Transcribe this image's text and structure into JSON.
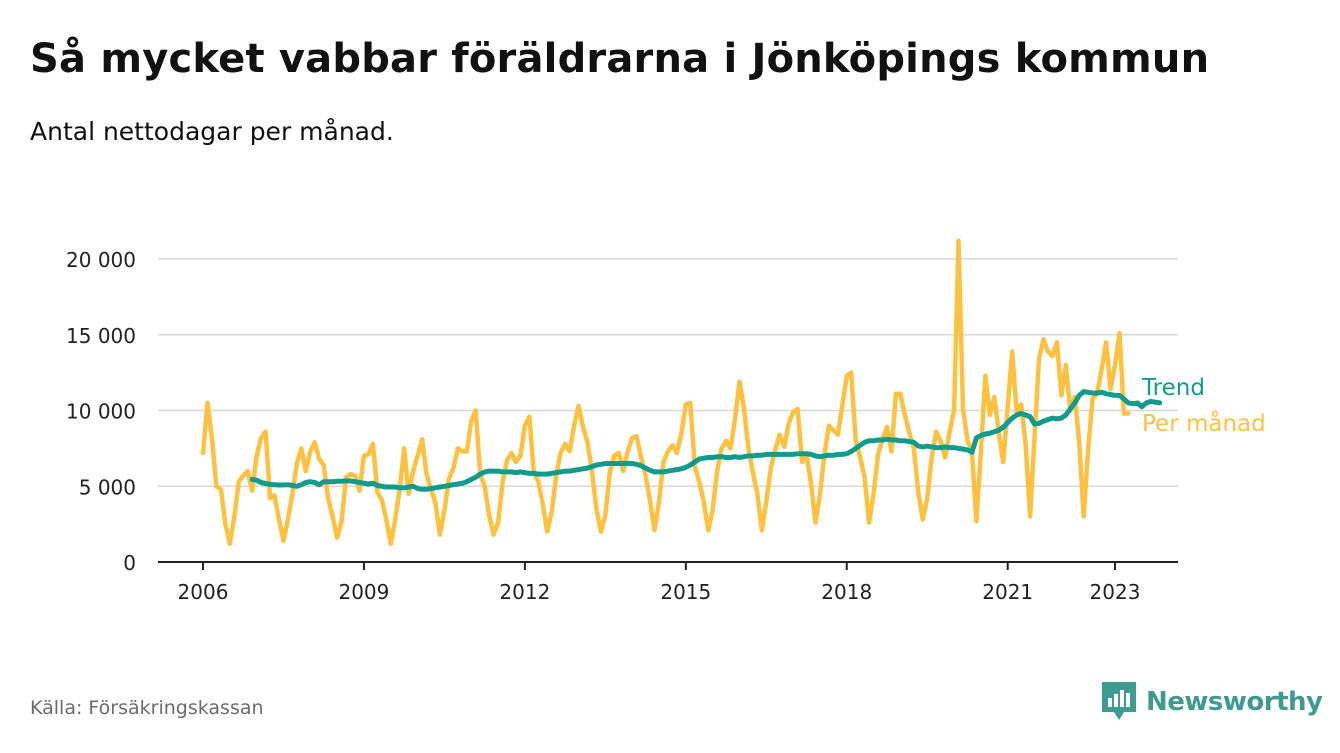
{
  "title": "Så mycket vabbar föräldrarna i Jönköpings kommun",
  "subtitle": "Antal nettodagar per månad.",
  "source": "Källa: Försäkringskassan",
  "logo": {
    "text": "Newsworthy",
    "icon": "bar-chart-speech-bubble-icon"
  },
  "colors": {
    "monthly": "#fec13f",
    "trend": "#119b8c",
    "grid": "#d8d8d8",
    "axis": "#222222"
  },
  "chart_data": {
    "type": "line",
    "title": "Så mycket vabbar föräldrarna i Jönköpings kommun",
    "subtitle": "Antal nettodagar per månad.",
    "xlim": [
      2006,
      2023.9
    ],
    "ylim": [
      0,
      21500
    ],
    "x_ticks": [
      2006,
      2009,
      2012,
      2015,
      2018,
      2021,
      2023
    ],
    "x_tick_labels": [
      "2006",
      "2009",
      "2012",
      "2015",
      "2018",
      "2021",
      "2023"
    ],
    "y_ticks": [
      0,
      5000,
      10000,
      15000,
      20000
    ],
    "y_tick_labels": [
      "0",
      "5 000",
      "10 000",
      "15 000",
      "20 000"
    ],
    "grid": "horizontal",
    "series": [
      {
        "name": "Per månad",
        "color": "#fec13f",
        "start": 2006.0,
        "step_months": 1,
        "values": [
          7200,
          10500,
          8200,
          5000,
          4800,
          2500,
          1200,
          3000,
          5300,
          5700,
          6000,
          4700,
          7000,
          8200,
          8600,
          4200,
          4400,
          2800,
          1400,
          2800,
          4500,
          6500,
          7500,
          6000,
          7300,
          7900,
          6800,
          6400,
          4200,
          3000,
          1600,
          2700,
          5600,
          5800,
          5700,
          4700,
          7000,
          7100,
          7800,
          4600,
          4100,
          2800,
          1200,
          2800,
          4800,
          7500,
          4500,
          6000,
          7000,
          8100,
          5800,
          4800,
          3900,
          1800,
          3400,
          5500,
          6200,
          7500,
          7300,
          7300,
          9300,
          10000,
          5800,
          5000,
          3100,
          1800,
          2600,
          5200,
          6700,
          7200,
          6600,
          7000,
          9000,
          9600,
          5900,
          5300,
          3800,
          2000,
          3300,
          5700,
          7200,
          7800,
          7300,
          9000,
          10300,
          8900,
          7900,
          6000,
          3500,
          2000,
          3100,
          5900,
          7000,
          7200,
          6000,
          7300,
          8200,
          8300,
          6900,
          5700,
          4000,
          2100,
          4000,
          6600,
          7300,
          7700,
          7200,
          8500,
          10400,
          10500,
          6300,
          5300,
          4000,
          2100,
          3400,
          6000,
          7500,
          8000,
          7500,
          9400,
          11900,
          10200,
          7500,
          5900,
          4500,
          2100,
          4000,
          6200,
          7400,
          8400,
          7600,
          9100,
          9900,
          10100,
          6600,
          7100,
          5200,
          2600,
          4400,
          7100,
          9000,
          8700,
          8400,
          10300,
          12300,
          12500,
          8000,
          6900,
          5600,
          2600,
          4500,
          7100,
          8100,
          8900,
          7300,
          11100,
          11100,
          9700,
          8500,
          7500,
          4600,
          2800,
          4200,
          6900,
          8600,
          8000,
          6900,
          8600,
          10000,
          21200,
          10100,
          8000,
          7300,
          2700,
          7300,
          12300,
          9700,
          10900,
          8500,
          6600,
          10200,
          13900,
          9900,
          10400,
          7800,
          3000,
          8200,
          13400,
          14700,
          13900,
          13600,
          14500,
          11000,
          13000,
          10000,
          10900,
          7900,
          3000,
          7500,
          10800,
          11100,
          12700,
          14500,
          11400,
          13000,
          15100,
          9800,
          9800
        ]
      },
      {
        "name": "Trend",
        "color": "#119b8c",
        "start": 2006.917,
        "step_months": 1,
        "values": [
          5450,
          5400,
          5250,
          5180,
          5120,
          5100,
          5080,
          5090,
          5100,
          5050,
          5000,
          5100,
          5250,
          5300,
          5250,
          5100,
          5300,
          5300,
          5300,
          5330,
          5330,
          5350,
          5350,
          5300,
          5250,
          5200,
          5150,
          5200,
          5050,
          5000,
          4950,
          4950,
          4950,
          4900,
          4900,
          4950,
          5000,
          4850,
          4800,
          4800,
          4850,
          4900,
          4950,
          5000,
          5050,
          5100,
          5150,
          5200,
          5300,
          5450,
          5600,
          5800,
          5950,
          6000,
          6000,
          6000,
          5950,
          5950,
          5950,
          5900,
          5950,
          5900,
          5850,
          5850,
          5800,
          5800,
          5800,
          5850,
          5900,
          5950,
          6000,
          6000,
          6050,
          6100,
          6150,
          6200,
          6300,
          6400,
          6450,
          6500,
          6500,
          6500,
          6500,
          6500,
          6500,
          6500,
          6450,
          6350,
          6200,
          6050,
          5950,
          5950,
          5950,
          6000,
          6050,
          6100,
          6150,
          6250,
          6400,
          6600,
          6800,
          6850,
          6900,
          6900,
          6950,
          6950,
          6900,
          6900,
          6950,
          6900,
          6950,
          7000,
          7000,
          7050,
          7050,
          7100,
          7100,
          7100,
          7100,
          7100,
          7100,
          7100,
          7150,
          7150,
          7150,
          7100,
          7000,
          6950,
          7000,
          7050,
          7050,
          7100,
          7100,
          7150,
          7300,
          7500,
          7700,
          7900,
          8000,
          8000,
          8050,
          8050,
          8100,
          8050,
          8050,
          8000,
          8000,
          7950,
          7900,
          7650,
          7600,
          7650,
          7600,
          7550,
          7550,
          7600,
          7550,
          7550,
          7500,
          7450,
          7400,
          7250,
          8200,
          8350,
          8450,
          8500,
          8600,
          8700,
          8900,
          9200,
          9500,
          9700,
          9800,
          9700,
          9600,
          9100,
          9150,
          9300,
          9400,
          9500,
          9450,
          9500,
          9700,
          10100,
          10500,
          11000,
          11250,
          11200,
          11150,
          11150,
          11200,
          11100,
          11050,
          11000,
          11000,
          10750,
          10500,
          10450,
          10500,
          10250,
          10500,
          10600,
          10550,
          10500
        ]
      }
    ],
    "end_labels": {
      "trend": "Trend",
      "monthly": "Per månad"
    }
  }
}
